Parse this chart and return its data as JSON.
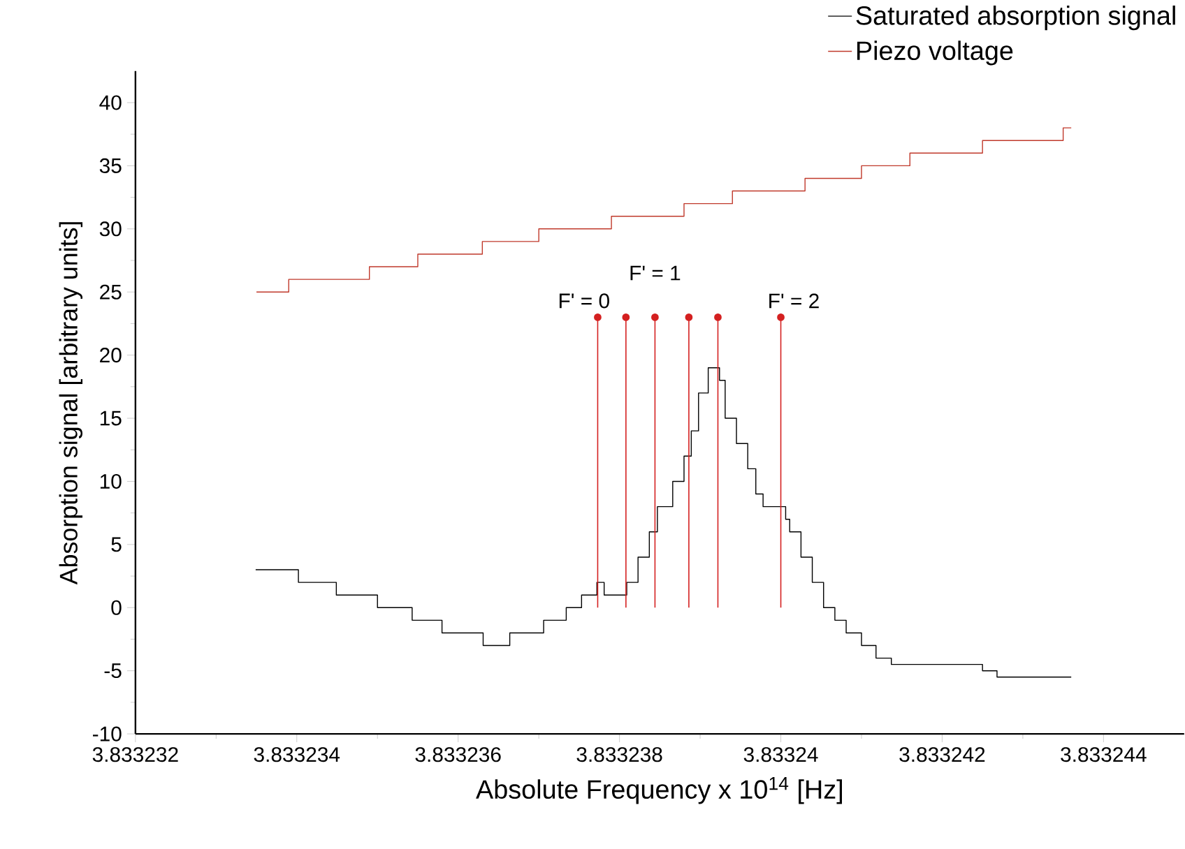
{
  "chart_data": {
    "type": "step",
    "xlabel": "Absolute Frequency x 10$^{14}$ [Hz]",
    "ylabel": "Absorption signal [arbitrary units]",
    "xlim": [
      3.833232,
      3.833245
    ],
    "ylim": [
      -10,
      42.5
    ],
    "xticks": [
      3.833232,
      3.833234,
      3.833236,
      3.833238,
      3.83324,
      3.833242,
      3.833244
    ],
    "yticks": [
      -10,
      -5,
      0,
      5,
      10,
      15,
      20,
      25,
      30,
      35,
      40
    ],
    "legend": "top right",
    "marker": "none",
    "grid": false,
    "series": [
      {
        "name": "Saturated absorption signal",
        "color": "#000000",
        "x": [
          3.83323349,
          3.83323402,
          3.83323449,
          3.833235,
          3.83323543,
          3.8332358,
          3.83323631,
          3.83323664,
          3.83323706,
          3.83323734,
          3.83323753,
          3.83323772,
          3.83323781,
          3.83323795,
          3.83323809,
          3.83323823,
          3.83323837,
          3.83323847,
          3.83323866,
          3.8332388,
          3.83323889,
          3.83323898,
          3.8332391,
          3.83323924,
          3.83323931,
          3.83323945,
          3.83323959,
          3.83323969,
          3.83323978,
          3.83324006,
          3.83324011,
          3.83324025,
          3.83324039,
          3.83324053,
          3.83324067,
          3.83324081,
          3.833241,
          3.83324118,
          3.83324137,
          3.8332425,
          3.83324268,
          3.8332436
        ],
        "values": [
          3,
          2,
          1,
          0,
          -1,
          -2,
          -3,
          -2,
          -1,
          0,
          1,
          2,
          1,
          1,
          2,
          4,
          6,
          8,
          10,
          12,
          14,
          17,
          19,
          18,
          15,
          13,
          11,
          9,
          8,
          7,
          6,
          4,
          2,
          0,
          -1,
          -2,
          -3,
          -4,
          -4.5,
          -5,
          -5.5,
          -5.5
        ]
      },
      {
        "name": "Piezo voltage",
        "color": "#c0392b",
        "x": [
          3.8332335,
          3.8332339,
          3.8332349,
          3.8332355,
          3.8332363,
          3.833237,
          3.8332379,
          3.8332388,
          3.8332394,
          3.8332403,
          3.833241,
          3.8332416,
          3.8332425,
          3.8332435,
          3.8332436
        ],
        "values": [
          25,
          26,
          27,
          28,
          29,
          30,
          31,
          32,
          33,
          34,
          35,
          36,
          37,
          38,
          38
        ]
      },
      {
        "type": "lollipop",
        "marker": "circle",
        "color": "#d42020",
        "x": [
          3.83323773,
          3.83323808,
          3.83323844,
          3.83323886,
          3.83323922,
          3.83324
        ],
        "values": [
          23,
          23,
          23,
          23,
          23,
          23
        ]
      }
    ],
    "annotations": [
      {
        "text": "F' = 0",
        "x": 3.83323756,
        "y": 24.3
      },
      {
        "text": "F' = 1",
        "x": 3.83323844,
        "y": 26.5
      },
      {
        "text": "F' = 2",
        "x": 3.83324016,
        "y": 24.3
      }
    ]
  }
}
